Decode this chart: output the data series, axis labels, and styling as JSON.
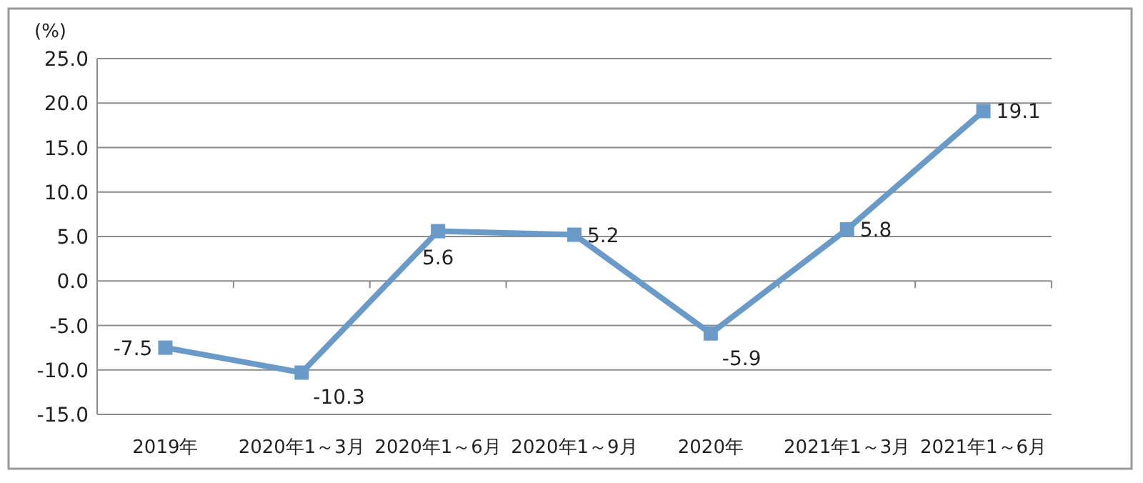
{
  "chart_data": {
    "type": "line",
    "ylabel": "(%)",
    "categories": [
      "2019年",
      "2020年1～3月",
      "2020年1～6月",
      "2020年1～9月",
      "2020年",
      "2021年1～3月",
      "2021年1～6月"
    ],
    "values": [
      -7.5,
      -10.3,
      5.6,
      5.2,
      -5.9,
      5.8,
      19.1
    ],
    "color": "#6a9bc8",
    "marker": "square",
    "data_labels": true,
    "grid": "y",
    "ylim": [
      -15,
      25
    ],
    "yticks": [
      {
        "value": -15,
        "label": "-15.0"
      },
      {
        "value": -10,
        "label": "-10.0"
      },
      {
        "value": -5,
        "label": "-5.0"
      },
      {
        "value": 0,
        "label": "0.0"
      },
      {
        "value": 5,
        "label": "5.0"
      },
      {
        "value": 10,
        "label": "10.0"
      },
      {
        "value": 15,
        "label": "15.0"
      },
      {
        "value": 20,
        "label": "20.0"
      },
      {
        "value": 25,
        "label": "25.0"
      }
    ]
  }
}
